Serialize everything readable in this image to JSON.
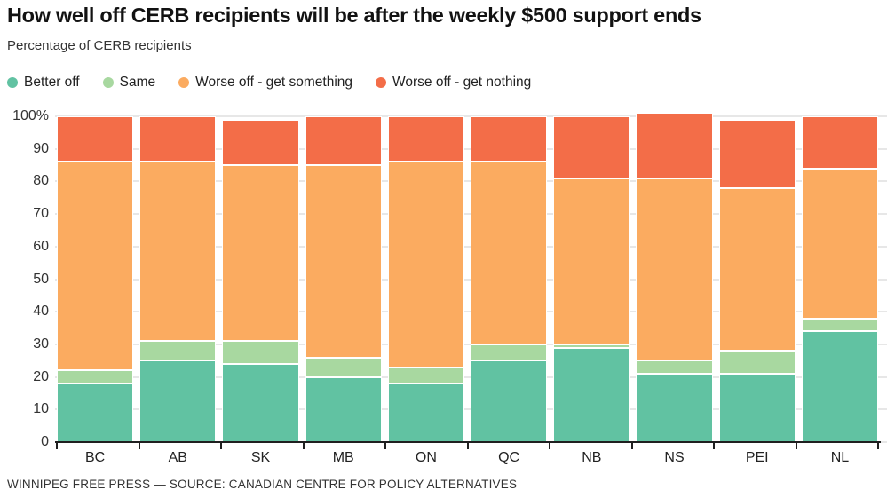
{
  "footer": {
    "credit": "WINNIPEG FREE PRESS — SOURCE: CANADIAN CENTRE FOR POLICY ALTERNATIVES"
  },
  "chart_data": {
    "type": "bar",
    "stacked": true,
    "title": "How well off CERB recipients will be after the weekly $500 support ends",
    "subtitle": "Percentage of CERB recipients",
    "categories": [
      "BC",
      "AB",
      "SK",
      "MB",
      "ON",
      "QC",
      "NB",
      "NS",
      "PEI",
      "NL"
    ],
    "series": [
      {
        "name": "Better off",
        "color": "#61C2A2",
        "values": [
          18,
          25,
          24,
          20,
          18,
          25,
          29,
          21,
          21,
          34
        ]
      },
      {
        "name": "Same",
        "color": "#A8D8A0",
        "values": [
          4,
          6,
          7,
          6,
          5,
          5,
          1,
          4,
          7,
          4
        ]
      },
      {
        "name": "Worse off - get something",
        "color": "#FBAB60",
        "values": [
          64,
          55,
          54,
          59,
          63,
          56,
          51,
          56,
          50,
          46
        ]
      },
      {
        "name": "Worse off - get nothing",
        "color": "#F36D48",
        "values": [
          14,
          14,
          14,
          15,
          14,
          14,
          19,
          20,
          21,
          16
        ]
      }
    ],
    "totals": [
      100,
      100,
      99,
      100,
      100,
      100,
      100,
      101,
      99,
      100
    ],
    "yticks": [
      {
        "label": "100%",
        "value": 100
      },
      {
        "label": "90",
        "value": 90
      },
      {
        "label": "80",
        "value": 80
      },
      {
        "label": "70",
        "value": 70
      },
      {
        "label": "60",
        "value": 60
      },
      {
        "label": "50",
        "value": 50
      },
      {
        "label": "40",
        "value": 40
      },
      {
        "label": "30",
        "value": 30
      },
      {
        "label": "20",
        "value": 20
      },
      {
        "label": "10",
        "value": 10
      },
      {
        "label": "0",
        "value": 0
      }
    ],
    "ylim": [
      0,
      100
    ],
    "grid": true,
    "legend_position": "top",
    "colors": {
      "grid": "#e7e7e7",
      "axis": "#1f1f1f",
      "title_text": "#121212",
      "label_text": "#333333"
    }
  }
}
